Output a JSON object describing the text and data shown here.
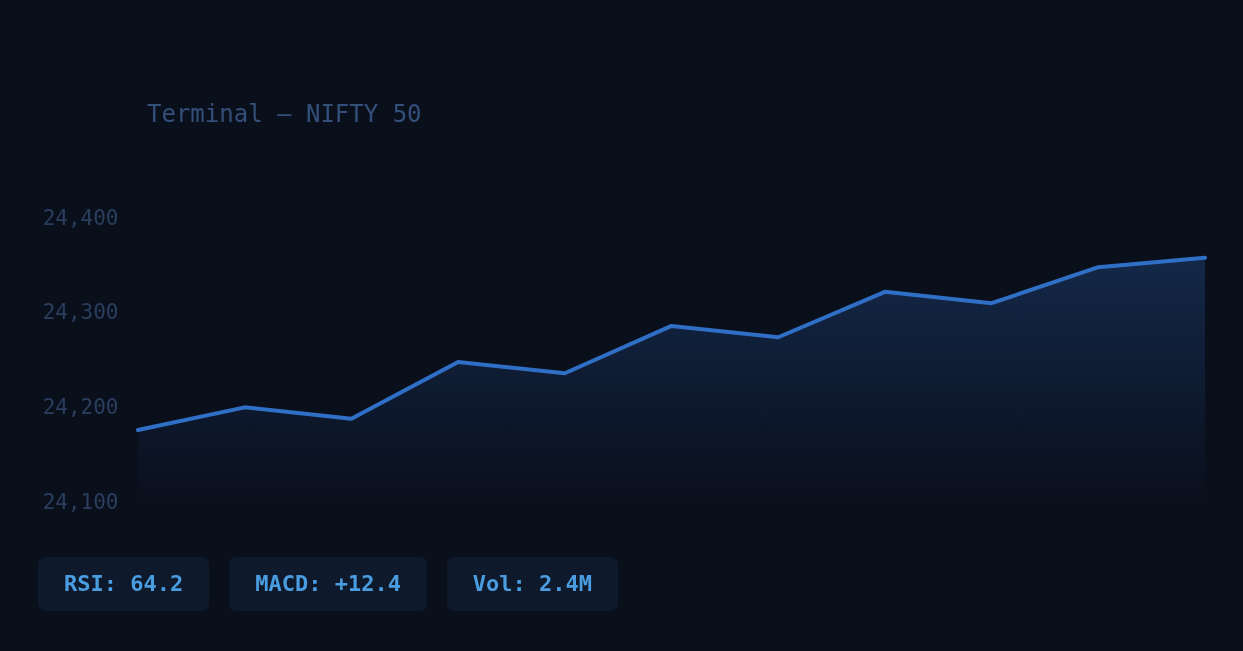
{
  "chart_data": {
    "type": "area",
    "title": "Terminal — NIFTY 50",
    "categories": [
      null,
      null,
      null,
      null,
      null,
      null,
      null,
      null,
      null,
      null,
      null
    ],
    "series": [
      {
        "color": "#2f6fc6",
        "values": [
          24176,
          24200,
          24188,
          24248,
          24236,
          24286,
          24274,
          24322,
          24310,
          24348,
          24358
        ]
      }
    ],
    "ylim": [
      24100,
      24400
    ],
    "yticks": [
      {
        "value": 24100,
        "label": "24,100"
      },
      {
        "value": 24200,
        "label": "24,200"
      },
      {
        "value": 24300,
        "label": "24,300"
      },
      {
        "value": 24400,
        "label": "24,400"
      }
    ],
    "grid": false,
    "tick_labels": "y",
    "marker": "none",
    "line_style": "solid",
    "annotations": [
      "RSI: 64.2",
      "MACD: +12.4",
      "Vol: 2.4M"
    ]
  }
}
